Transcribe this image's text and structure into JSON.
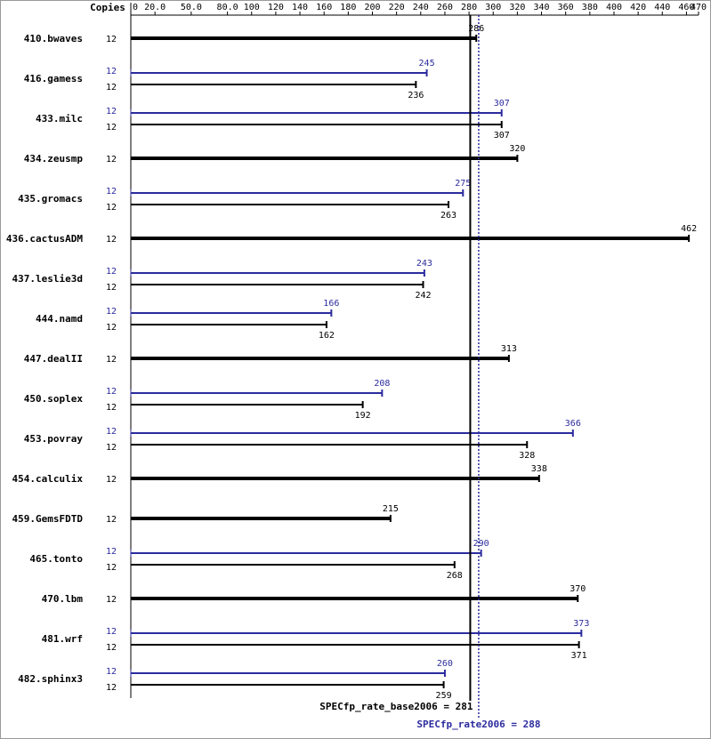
{
  "chart_data": {
    "type": "bar",
    "orientation": "horizontal",
    "copies_label": "Copies",
    "categories": [
      "410.bwaves",
      "416.gamess",
      "433.milc",
      "434.zeusmp",
      "435.gromacs",
      "436.cactusADM",
      "437.leslie3d",
      "444.namd",
      "447.dealII",
      "450.soplex",
      "453.povray",
      "454.calculix",
      "459.GemsFDTD",
      "465.tonto",
      "470.lbm",
      "481.wrf",
      "482.sphinx3"
    ],
    "series": [
      {
        "color": "#000000",
        "copies": [
          12,
          12,
          12,
          12,
          12,
          12,
          12,
          12,
          12,
          12,
          12,
          12,
          12,
          12,
          12,
          12,
          12
        ],
        "values": [
          286,
          236,
          307,
          320,
          263,
          462,
          242,
          162,
          313,
          192,
          328,
          338,
          215,
          268,
          370,
          371,
          259
        ]
      },
      {
        "color": "#2b2b9e",
        "copies": [
          null,
          12,
          12,
          null,
          12,
          null,
          12,
          12,
          null,
          12,
          12,
          null,
          null,
          12,
          null,
          12,
          12
        ],
        "values": [
          null,
          245,
          307,
          null,
          275,
          null,
          243,
          166,
          null,
          208,
          366,
          null,
          null,
          290,
          null,
          373,
          260
        ]
      }
    ],
    "xlim": [
      0,
      470
    ],
    "xticks": [
      0,
      {
        "value": 20,
        "label": "20.0"
      },
      {
        "value": 50,
        "label": "50.0"
      },
      {
        "value": 80,
        "label": "80.0"
      },
      100,
      120,
      140,
      160,
      180,
      200,
      220,
      240,
      260,
      280,
      300,
      320,
      340,
      360,
      380,
      400,
      420,
      440,
      460,
      470
    ],
    "reference_lines": [
      {
        "label": "SPECfp_rate_base2006 = 281",
        "value": 281,
        "color": "#000000",
        "line_style": "solid"
      },
      {
        "label": "SPECfp_rate2006 = 288",
        "value": 288,
        "color": "#2b2b9e",
        "line_style": "dotted"
      }
    ]
  }
}
